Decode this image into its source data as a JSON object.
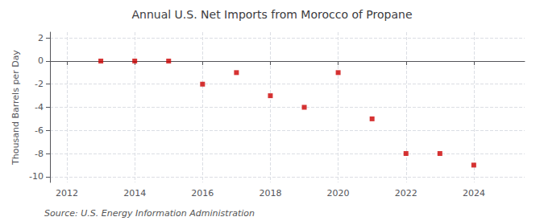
{
  "chart_data": {
    "type": "scatter",
    "title": "Annual U.S. Net Imports from Morocco of Propane",
    "ylabel": "Thousand Barrels per Day",
    "annotations": [
      "Source: U.S. Energy Information Administration"
    ],
    "x": [
      2013,
      2014,
      2015,
      2016,
      2017,
      2018,
      2019,
      2020,
      2021,
      2022,
      2023,
      2024
    ],
    "values": [
      0,
      0,
      0,
      -2,
      -1,
      -3,
      -4,
      -1,
      -5,
      -8,
      -8,
      -9
    ],
    "xlim": [
      2011.5,
      2025.5
    ],
    "xticks": [
      2012,
      2014,
      2016,
      2018,
      2020,
      2022,
      2024
    ],
    "ylim": [
      -10.5,
      2.5
    ],
    "yticks": [
      -10,
      -8,
      -6,
      -4,
      -2,
      0,
      2
    ],
    "color": "#cc0000",
    "marker": "square",
    "grid": true
  }
}
